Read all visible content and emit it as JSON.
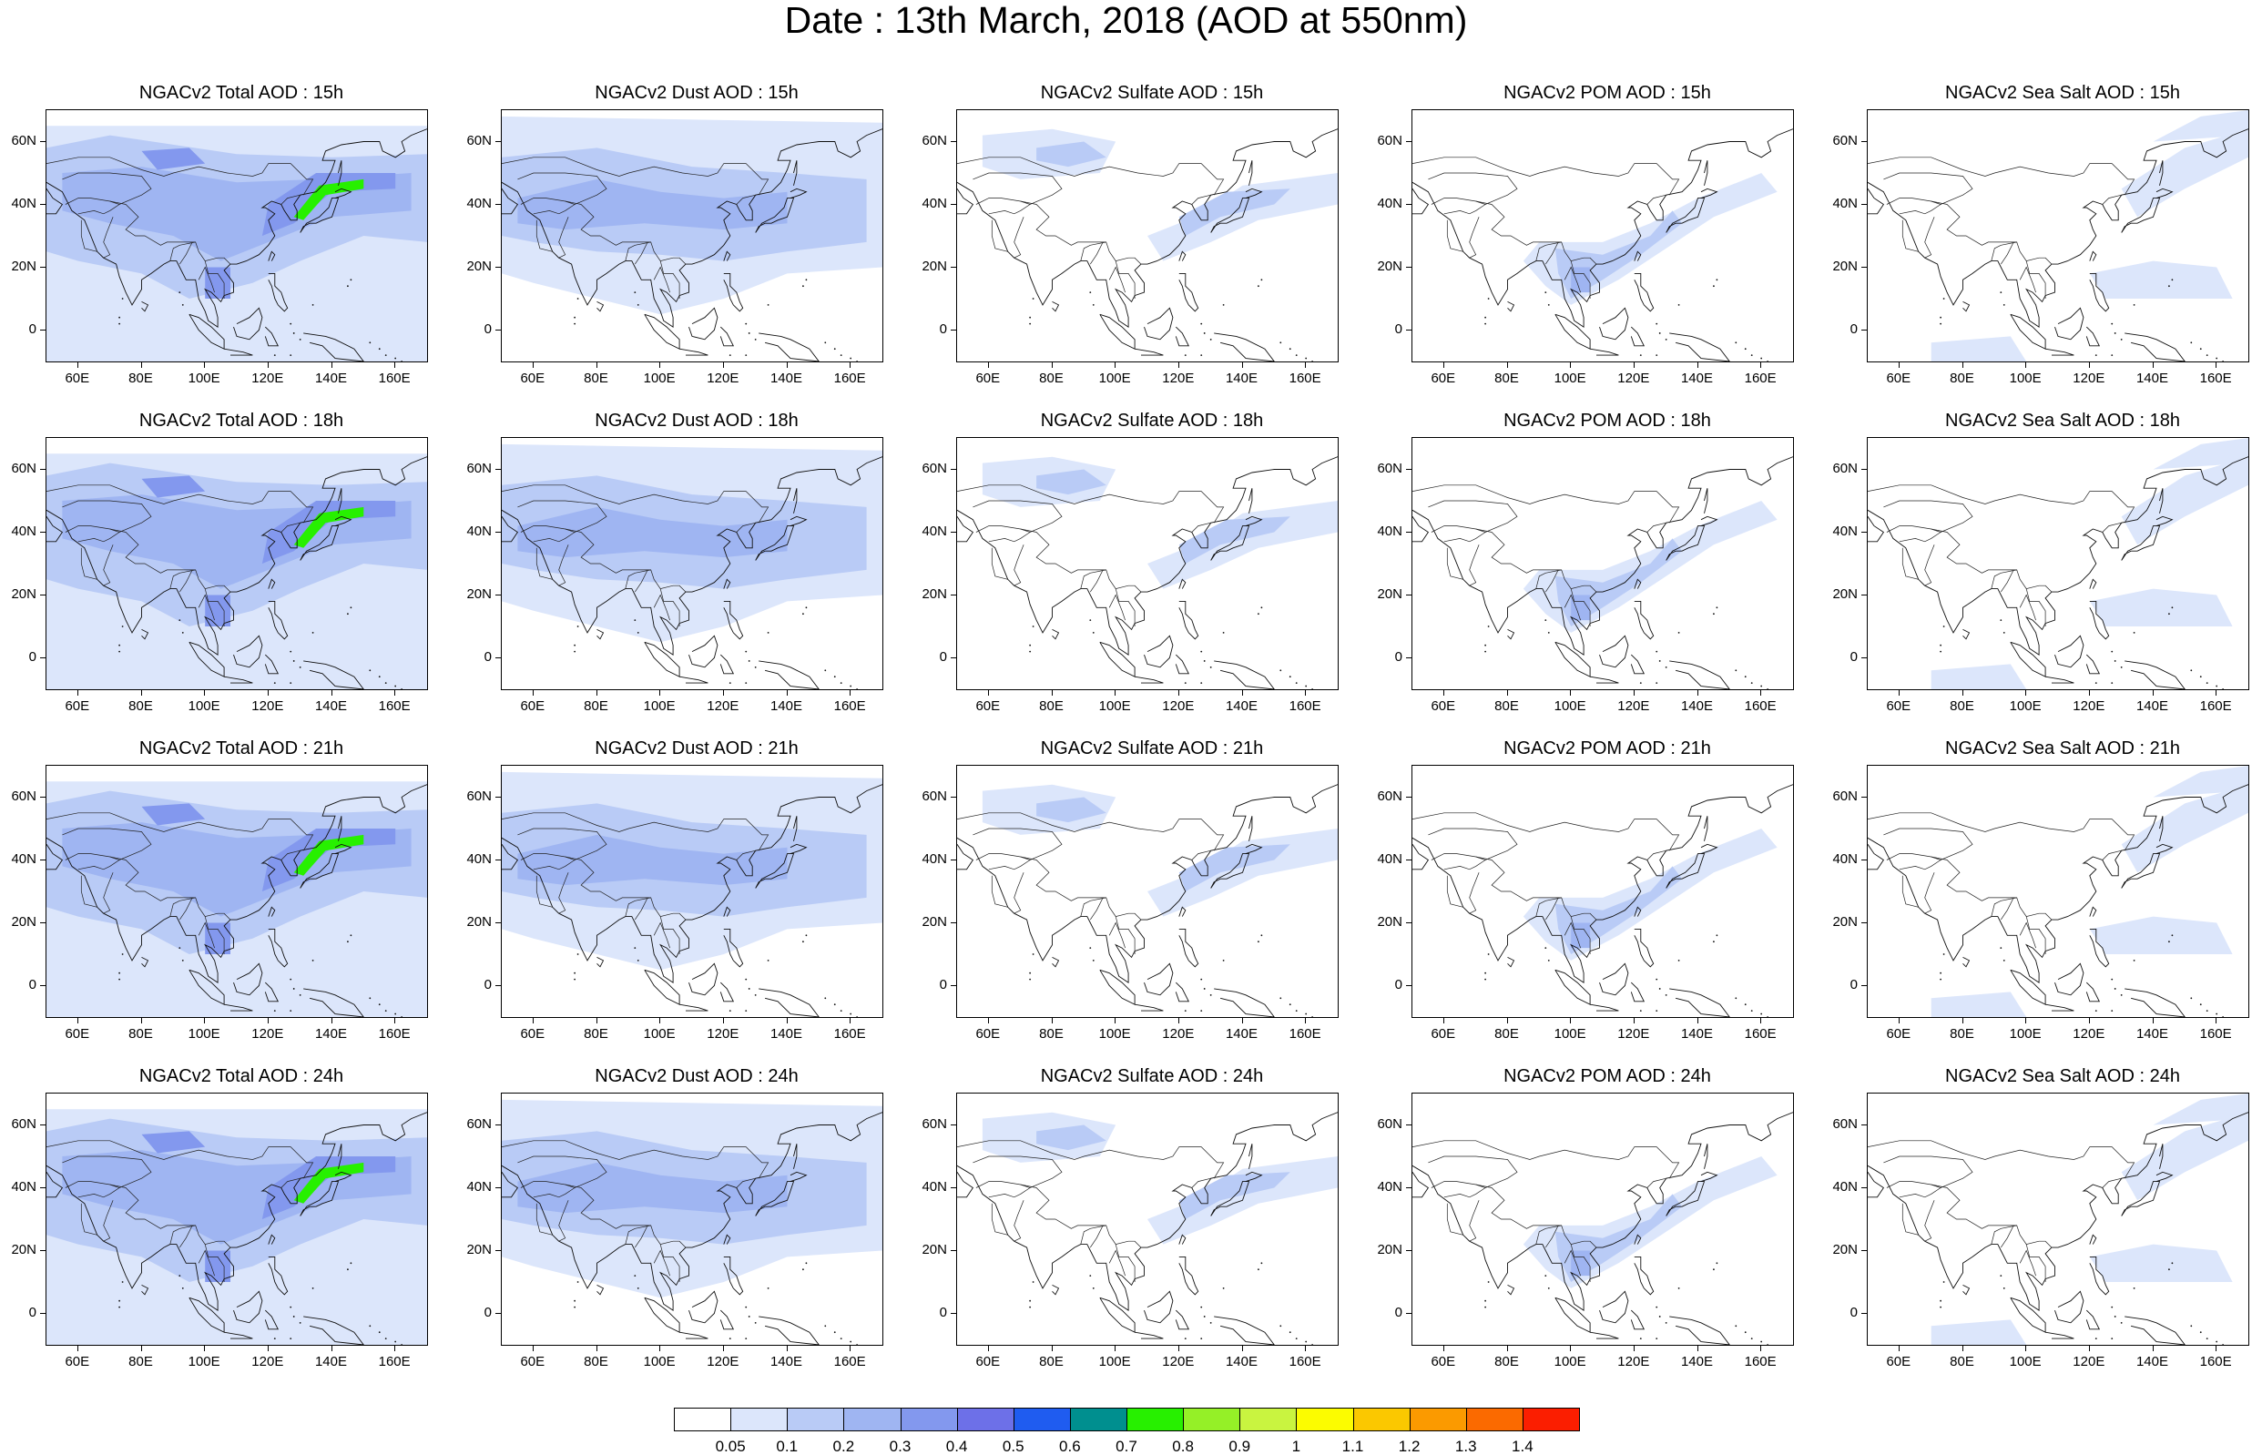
{
  "title": "Date : 13th March, 2018 (AOD at 550nm)",
  "axis": {
    "lat_labels": [
      "60N",
      "40N",
      "20N",
      "0"
    ],
    "lat_values": [
      60,
      40,
      20,
      0
    ],
    "lon_labels": [
      "60E",
      "80E",
      "100E",
      "120E",
      "140E",
      "160E"
    ],
    "lon_values": [
      60,
      80,
      100,
      120,
      140,
      160
    ],
    "lon_range": [
      50,
      170
    ],
    "lat_range": [
      -10,
      70
    ]
  },
  "panels": [
    {
      "title": "NGACv2 Total AOD : 15h",
      "type": "total"
    },
    {
      "title": "NGACv2 Dust AOD : 15h",
      "type": "dust"
    },
    {
      "title": "NGACv2 Sulfate AOD : 15h",
      "type": "sulfate"
    },
    {
      "title": "NGACv2 POM AOD : 15h",
      "type": "pom"
    },
    {
      "title": "NGACv2 Sea Salt AOD : 15h",
      "type": "seasalt"
    },
    {
      "title": "NGACv2 Total AOD : 18h",
      "type": "total"
    },
    {
      "title": "NGACv2 Dust AOD : 18h",
      "type": "dust"
    },
    {
      "title": "NGACv2 Sulfate AOD : 18h",
      "type": "sulfate"
    },
    {
      "title": "NGACv2 POM AOD : 18h",
      "type": "pom"
    },
    {
      "title": "NGACv2 Sea Salt AOD : 18h",
      "type": "seasalt"
    },
    {
      "title": "NGACv2 Total AOD : 21h",
      "type": "total"
    },
    {
      "title": "NGACv2 Dust AOD : 21h",
      "type": "dust"
    },
    {
      "title": "NGACv2 Sulfate AOD : 21h",
      "type": "sulfate"
    },
    {
      "title": "NGACv2 POM AOD : 21h",
      "type": "pom"
    },
    {
      "title": "NGACv2 Sea Salt AOD : 21h",
      "type": "seasalt"
    },
    {
      "title": "NGACv2 Total AOD : 24h",
      "type": "total"
    },
    {
      "title": "NGACv2 Dust AOD : 24h",
      "type": "dust"
    },
    {
      "title": "NGACv2 Sulfate AOD : 24h",
      "type": "sulfate"
    },
    {
      "title": "NGACv2 POM AOD : 24h",
      "type": "pom"
    },
    {
      "title": "NGACv2 Sea Salt  AOD : 24h",
      "type": "seasalt"
    }
  ],
  "colorbar": {
    "labels": [
      "0.05",
      "0.1",
      "0.2",
      "0.3",
      "0.4",
      "0.5",
      "0.6",
      "0.7",
      "0.8",
      "0.9",
      "1",
      "1.1",
      "1.2",
      "1.3",
      "1.4"
    ],
    "colors": [
      "#ffffff",
      "#dce6fb",
      "#b9cbf6",
      "#9fb5f2",
      "#8398ee",
      "#6d70e8",
      "#1f5cf0",
      "#008f8f",
      "#27f000",
      "#95f027",
      "#c9f440",
      "#fcfc00",
      "#fbc800",
      "#fb9a00",
      "#fb6a00",
      "#fb1e00"
    ]
  }
}
